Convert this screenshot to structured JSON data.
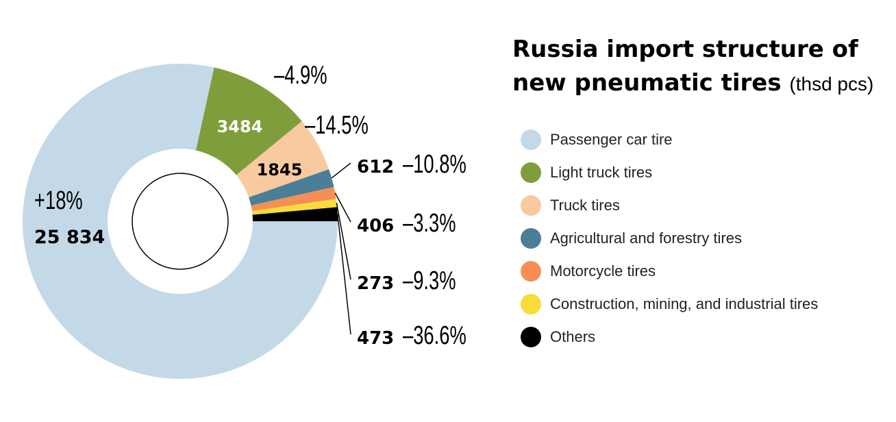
{
  "chart_data": {
    "type": "pie",
    "title_line1": "Russia import structure of",
    "title_line2": "new pneumatic tires",
    "unit": "(thsd pcs)",
    "slices": [
      {
        "label": "Passenger car tire",
        "value": 25834,
        "value_text": "25 834",
        "change": "+18%",
        "color": "#c4d9e8"
      },
      {
        "label": "Light truck tires",
        "value": 3484,
        "value_text": "3484",
        "change": "–4.9%",
        "color": "#7f9e3b"
      },
      {
        "label": "Truck tires",
        "value": 1845,
        "value_text": "1845",
        "change": "–14.5%",
        "color": "#f9c9a0"
      },
      {
        "label": "Agricultural and forestry tires",
        "value": 612,
        "value_text": "612",
        "change": "–10.8%",
        "color": "#4a7f97"
      },
      {
        "label": "Motorcycle tires",
        "value": 406,
        "value_text": "406",
        "change": "–3.3%",
        "color": "#f78f55"
      },
      {
        "label": "Construction, mining, and industrial tires",
        "value": 273,
        "value_text": "273",
        "change": "–9.3%",
        "color": "#f7dc3a"
      },
      {
        "label": "Others",
        "value": 473,
        "value_text": "473",
        "change": "–36.6%",
        "color": "#000000"
      }
    ]
  }
}
